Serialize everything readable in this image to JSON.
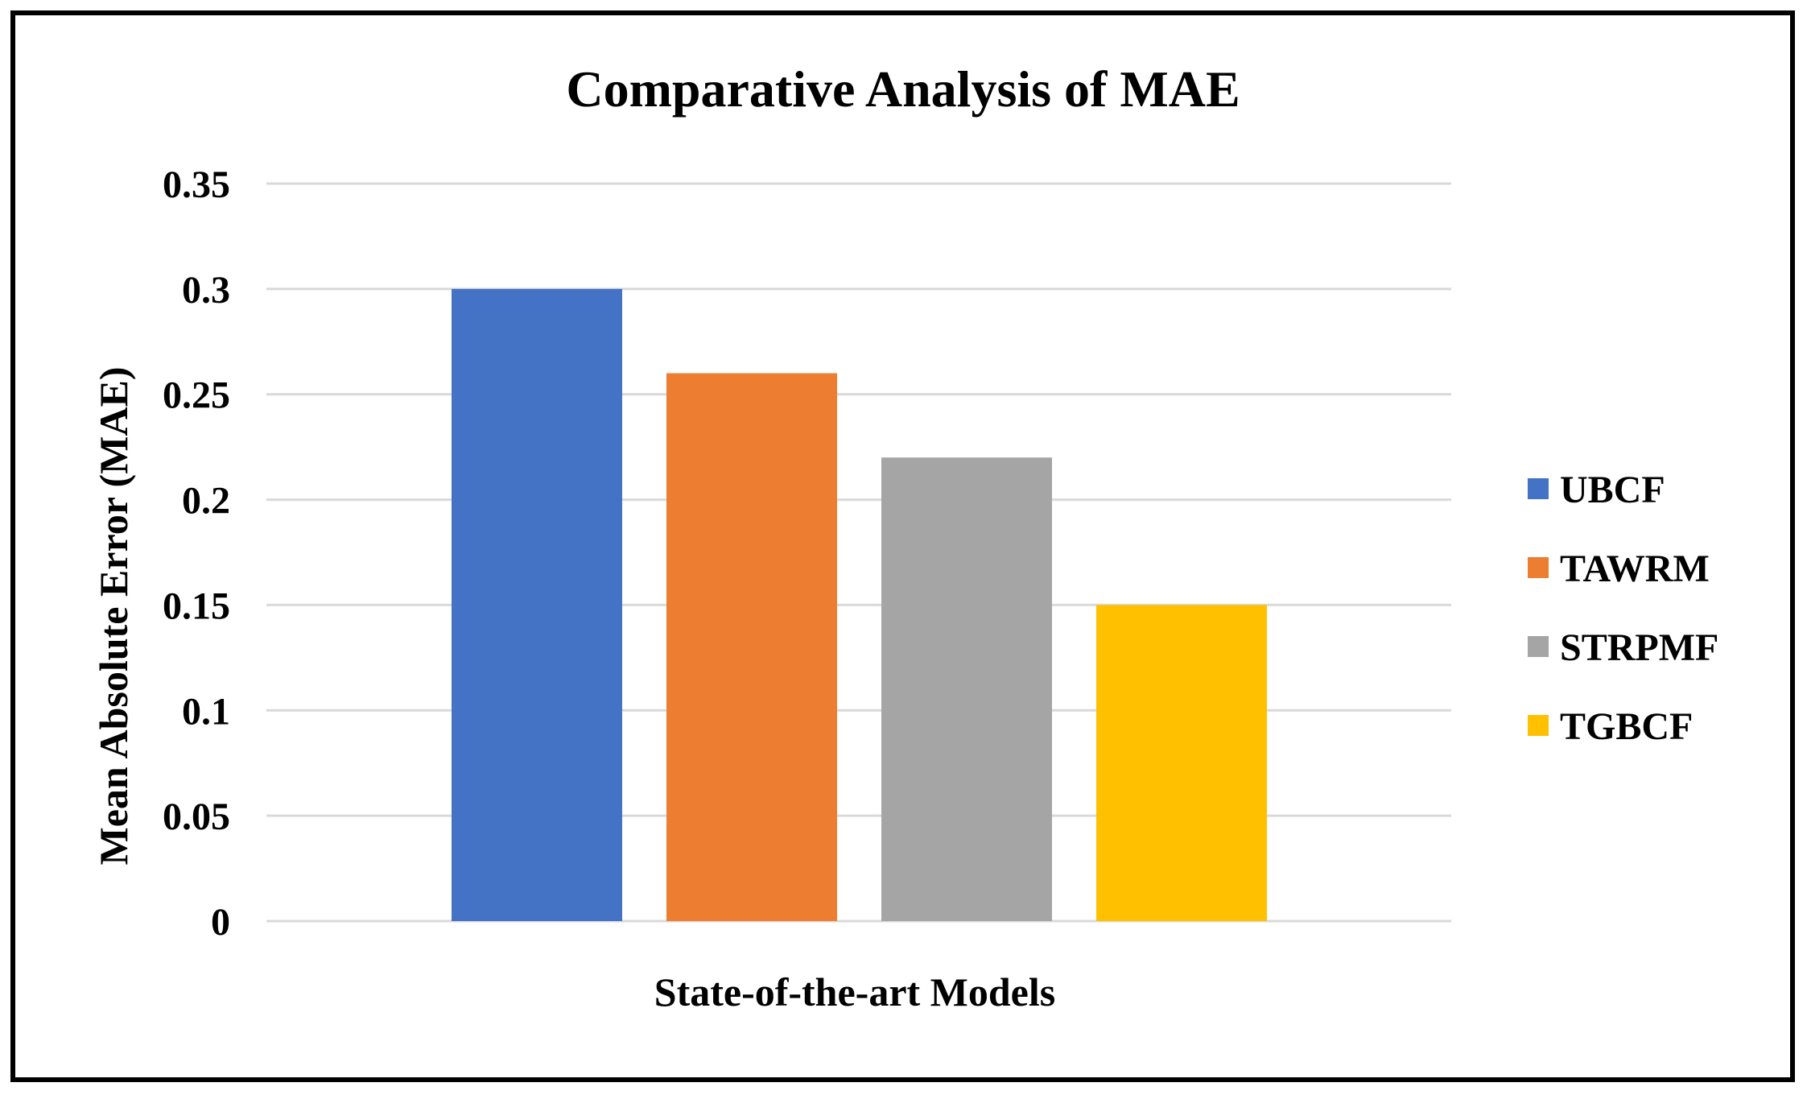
{
  "chart_data": {
    "type": "bar",
    "title": "Comparative Analysis of MAE",
    "xlabel": "State-of-the-art Models",
    "ylabel": "Mean Absolute Error (MAE)",
    "ylim": [
      0,
      0.35
    ],
    "yticks": [
      "0",
      "0.05",
      "0.1",
      "0.15",
      "0.2",
      "0.25",
      "0.3",
      "0.35"
    ],
    "grid": true,
    "legend_position": "right",
    "series": [
      {
        "name": "UBCF",
        "value": 0.3,
        "color": "#4472C4"
      },
      {
        "name": "TAWRM",
        "value": 0.26,
        "color": "#ED7D31"
      },
      {
        "name": "STRPMF",
        "value": 0.22,
        "color": "#A5A5A5"
      },
      {
        "name": "TGBCF",
        "value": 0.15,
        "color": "#FFC000"
      }
    ]
  }
}
